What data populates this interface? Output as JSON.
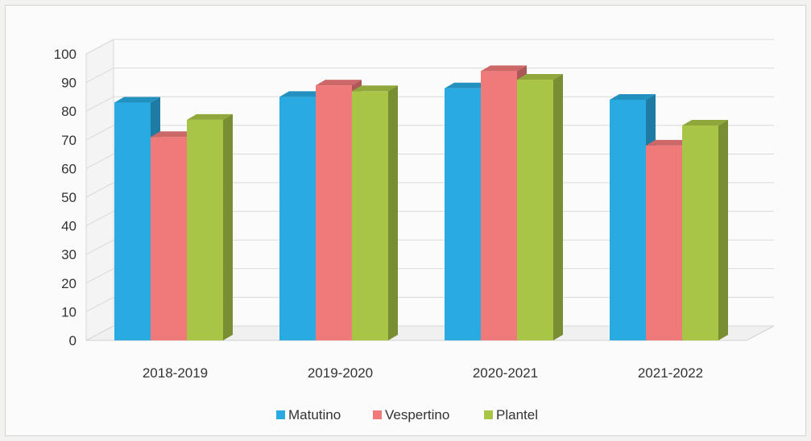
{
  "chart_data": {
    "type": "bar",
    "title": "",
    "xlabel": "",
    "ylabel": "",
    "categories": [
      "2018-2019",
      "2019-2020",
      "2020-2021",
      "2021-2022"
    ],
    "series": [
      {
        "name": "Matutino",
        "color": "#29abe2",
        "values": [
          83,
          85,
          88,
          84
        ]
      },
      {
        "name": "Vespertino",
        "color": "#f07a7a",
        "values": [
          71,
          89,
          94,
          68
        ]
      },
      {
        "name": "Plantel",
        "color": "#a8c545",
        "values": [
          77,
          87,
          91,
          75
        ]
      }
    ],
    "ylim": [
      0,
      100
    ],
    "yticks": [
      0,
      10,
      20,
      30,
      40,
      50,
      60,
      70,
      80,
      90,
      100
    ],
    "grid": true,
    "legend_position": "bottom",
    "style": "3d-clustered-column"
  }
}
